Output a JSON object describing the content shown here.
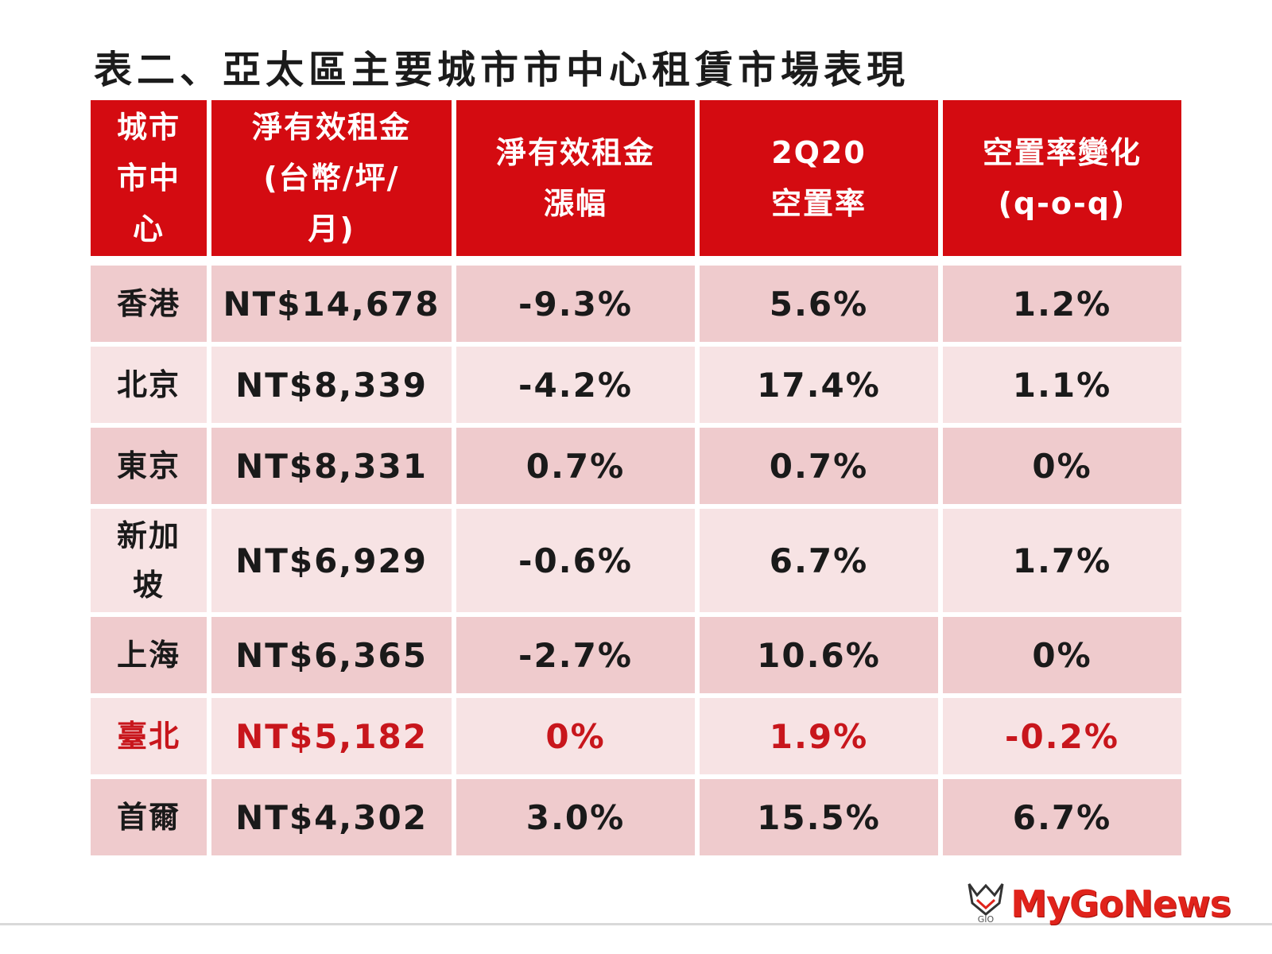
{
  "title": "表二、亞太區主要城市市中心租賃市場表現",
  "table": {
    "headers": [
      [
        "城市",
        "市中",
        "心"
      ],
      [
        "淨有效租金",
        "(台幣/坪/",
        "月)"
      ],
      [
        "淨有效租金",
        "漲幅"
      ],
      [
        "2Q20",
        "空置率"
      ],
      [
        "空置率變化",
        "(q-o-q)"
      ]
    ],
    "rows": [
      {
        "city": [
          "香港"
        ],
        "rent": "NT$14,678",
        "change": "-9.3%",
        "vacancy": "5.6%",
        "qoq": "1.2%"
      },
      {
        "city": [
          "北京"
        ],
        "rent": "NT$8,339",
        "change": "-4.2%",
        "vacancy": "17.4%",
        "qoq": "1.1%"
      },
      {
        "city": [
          "東京"
        ],
        "rent": "NT$8,331",
        "change": "0.7%",
        "vacancy": "0.7%",
        "qoq": "0%"
      },
      {
        "city": [
          "新加",
          "坡"
        ],
        "rent": "NT$6,929",
        "change": "-0.6%",
        "vacancy": "6.7%",
        "qoq": "1.7%"
      },
      {
        "city": [
          "上海"
        ],
        "rent": "NT$6,365",
        "change": "-2.7%",
        "vacancy": "10.6%",
        "qoq": "0%"
      },
      {
        "city": [
          "臺北"
        ],
        "rent": "NT$5,182",
        "change": "0%",
        "vacancy": "1.9%",
        "qoq": "-0.2%"
      },
      {
        "city": [
          "首爾"
        ],
        "rent": "NT$4,302",
        "change": "3.0%",
        "vacancy": "15.5%",
        "qoq": "6.7%"
      }
    ]
  },
  "logo": {
    "text": "MyGoNews",
    "mark_text": "GIO",
    "icon": "mygonews-logo-icon"
  },
  "colors": {
    "header_bg": "#d40b11",
    "row_dark": "#efcbcd",
    "row_light": "#f7e3e4",
    "highlight_text": "#c8161c",
    "logo_red": "#e0231b"
  }
}
